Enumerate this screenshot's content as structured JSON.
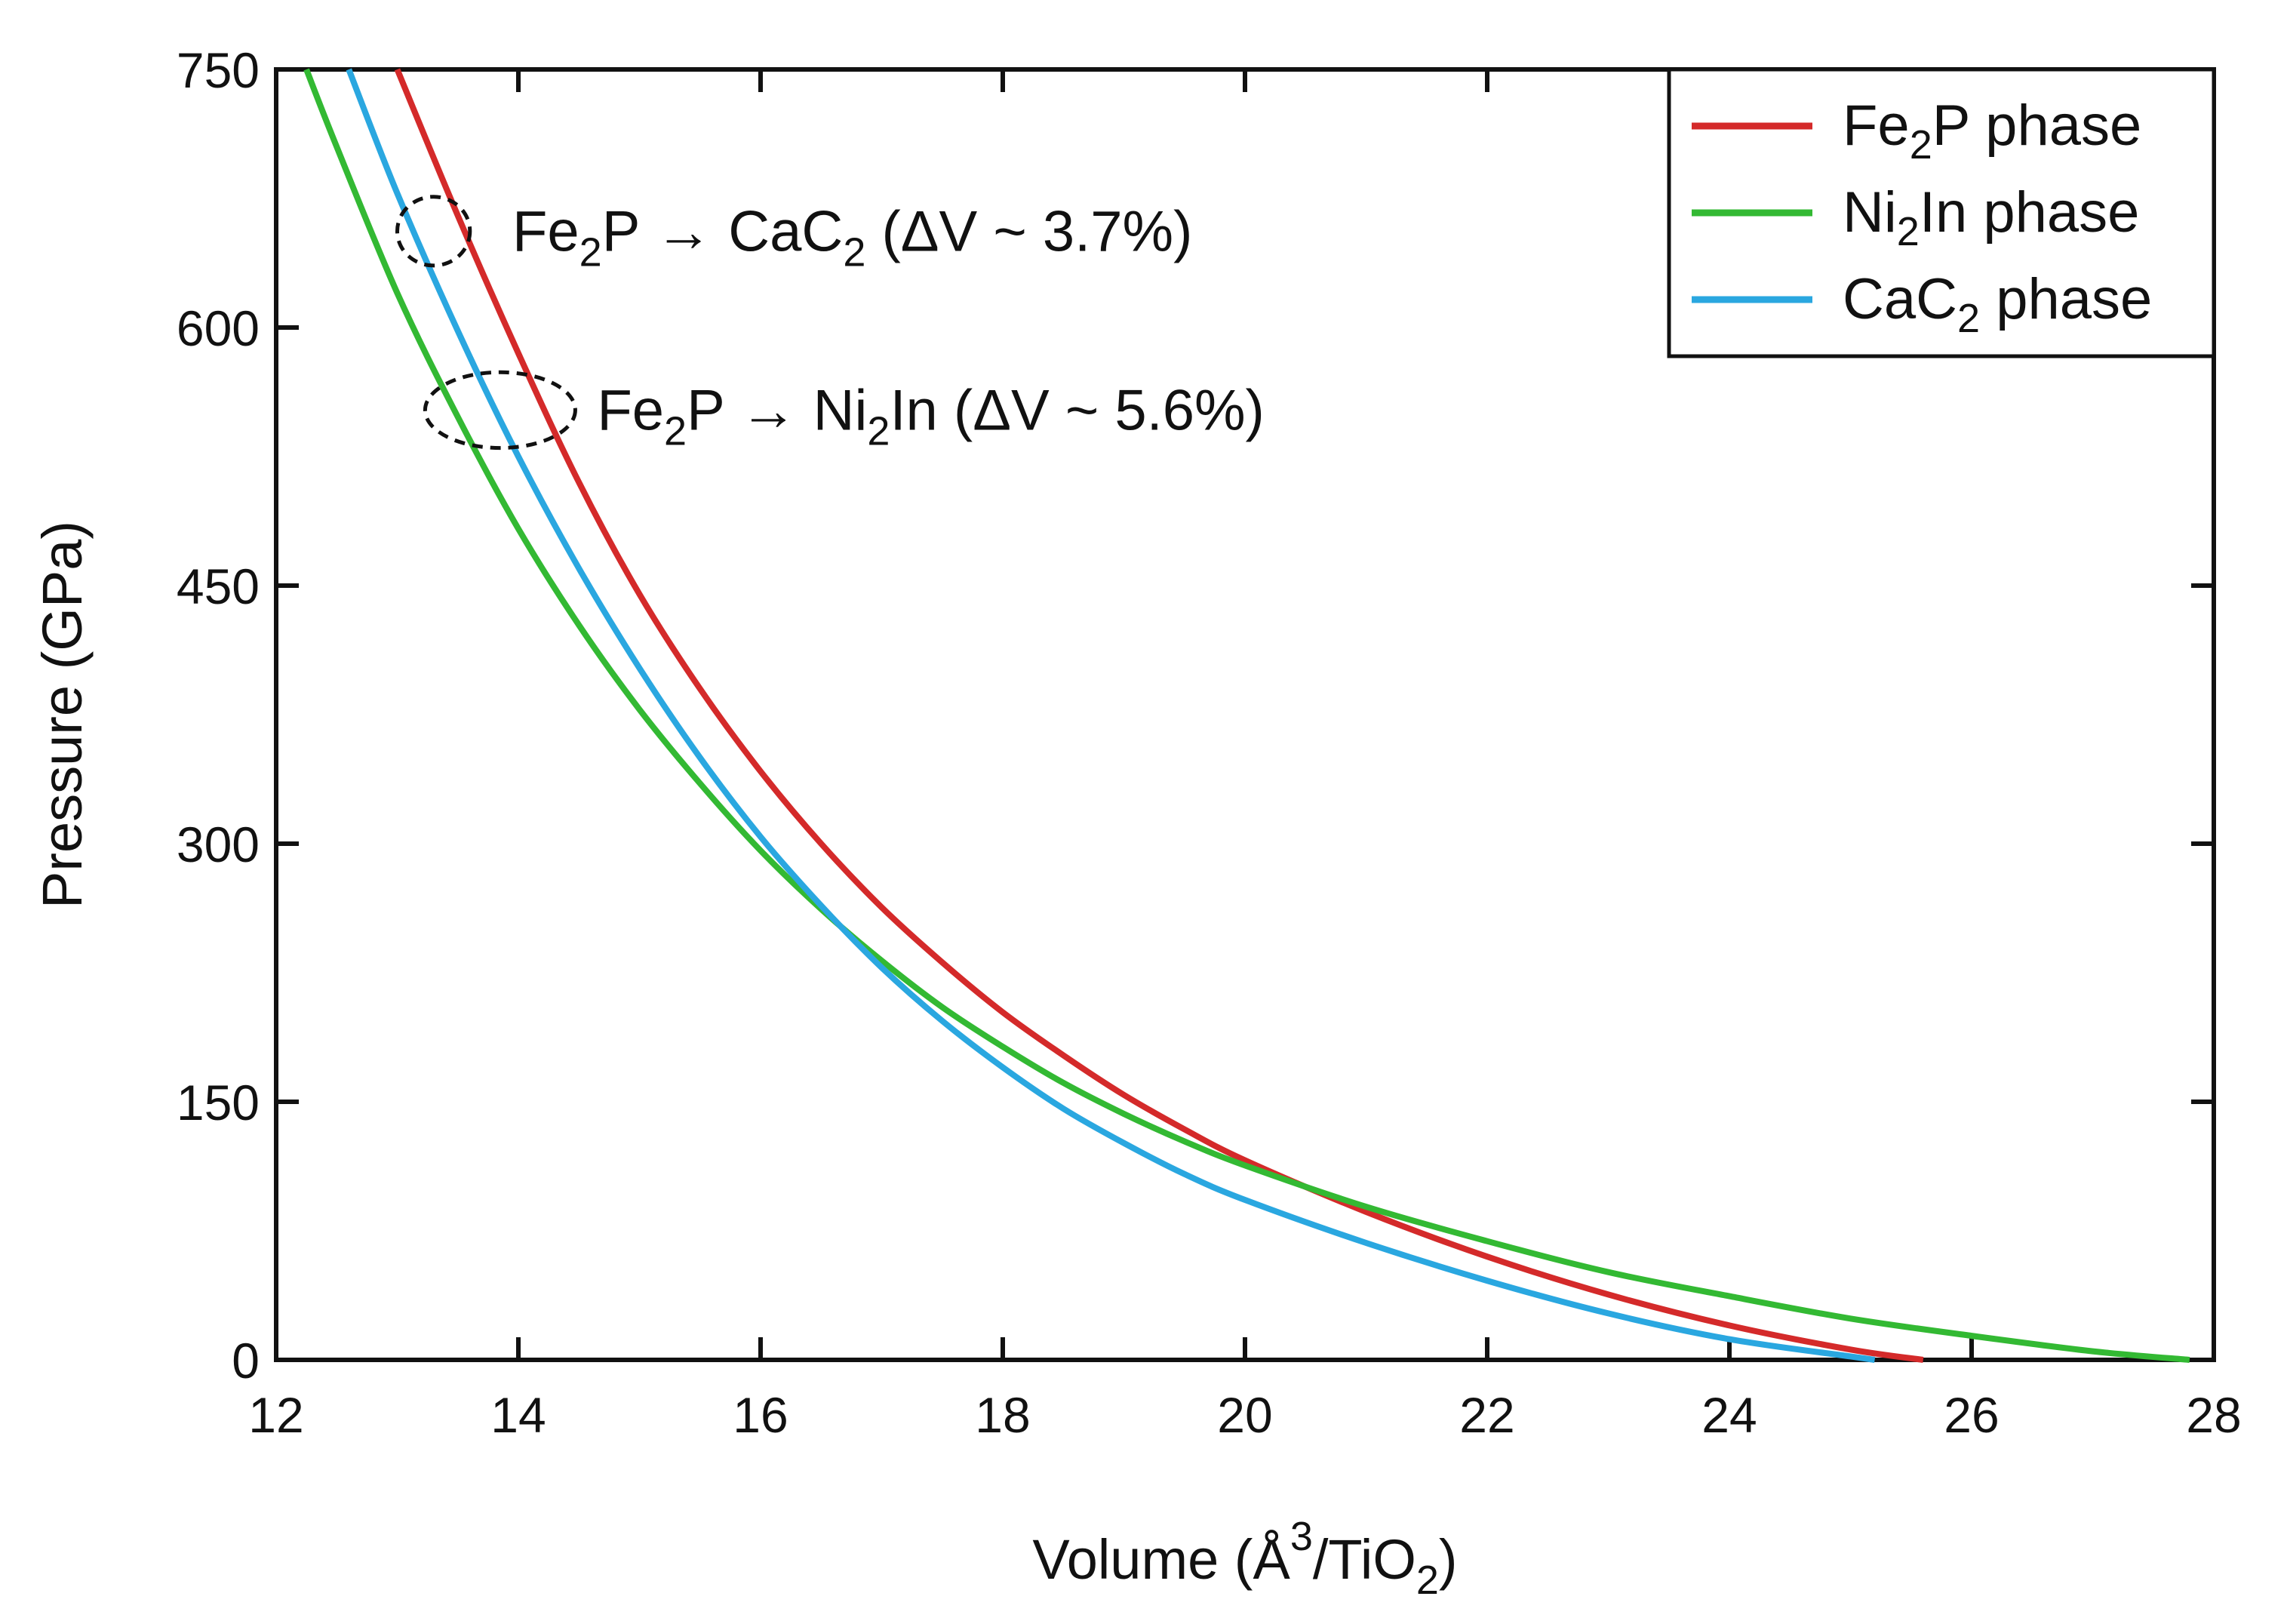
{
  "chart_data": {
    "type": "line",
    "xlabel": "Volume (Å3/TiO2)",
    "ylabel": "Pressure (GPa)",
    "xlabel_parts": {
      "pre": "Volume (Å",
      "sup": "3",
      "mid": "/TiO",
      "sub": "2",
      "post": ")"
    },
    "xlim": [
      12,
      28
    ],
    "ylim": [
      0,
      750
    ],
    "xticks": [
      12,
      14,
      16,
      18,
      20,
      22,
      24,
      26,
      28
    ],
    "yticks": [
      0,
      150,
      300,
      450,
      600,
      750
    ],
    "grid": false,
    "legend_position": "top-right",
    "series": [
      {
        "name": "Fe2P phase",
        "label_parts": {
          "a": "Fe",
          "sub": "2",
          "b": "P phase"
        },
        "color": "#d42a2a",
        "x": [
          13.0,
          13.5,
          14.0,
          14.5,
          15.0,
          15.5,
          16.0,
          16.5,
          17.0,
          17.5,
          18.0,
          18.5,
          19.0,
          19.5,
          20.0,
          21.0,
          22.0,
          23.0,
          24.0,
          25.0,
          25.6
        ],
        "y": [
          750,
          665,
          585,
          510,
          445,
          390,
          342,
          300,
          263,
          231,
          202,
          177,
          154,
          134,
          116,
          86,
          60,
          38,
          20,
          6,
          0
        ]
      },
      {
        "name": "Ni2In phase",
        "label_parts": {
          "a": "Ni",
          "sub": "2",
          "b": "In phase"
        },
        "color": "#33b933",
        "x": [
          12.25,
          12.5,
          13.0,
          13.5,
          14.0,
          14.5,
          15.0,
          15.5,
          16.0,
          16.5,
          17.0,
          17.5,
          18.0,
          18.5,
          19.0,
          19.5,
          20.0,
          21.0,
          22.0,
          23.0,
          24.0,
          25.0,
          26.0,
          27.0,
          27.8
        ],
        "y": [
          750,
          705,
          620,
          548,
          483,
          427,
          378,
          335,
          296,
          262,
          232,
          205,
          182,
          161,
          143,
          127,
          113,
          89,
          69,
          51,
          37,
          24,
          14,
          5,
          0
        ]
      },
      {
        "name": "CaC2 phase",
        "label_parts": {
          "a": "CaC",
          "sub": "2",
          "b": " phase"
        },
        "color": "#2aa7e0",
        "x": [
          12.6,
          13.0,
          13.5,
          14.0,
          14.5,
          15.0,
          15.5,
          16.0,
          16.5,
          17.0,
          17.5,
          18.0,
          18.5,
          19.0,
          19.5,
          20.0,
          21.0,
          22.0,
          23.0,
          24.0,
          25.0,
          25.2
        ],
        "y": [
          750,
          678,
          598,
          525,
          460,
          402,
          350,
          304,
          264,
          228,
          197,
          170,
          146,
          126,
          108,
          93,
          68,
          46,
          27,
          12,
          2,
          0
        ]
      }
    ],
    "annotations": [
      {
        "text": "Fe2P → CaC2 (ΔV ~ 3.7%)",
        "parts": [
          {
            "t": "Fe",
            "s": "n"
          },
          {
            "t": "2",
            "s": "sub"
          },
          {
            "t": "P → CaC",
            "s": "n"
          },
          {
            "t": "2",
            "s": "sub"
          },
          {
            "t": " (ΔV ~ 3.7%)",
            "s": "n"
          }
        ],
        "ellipse_center": [
          13.3,
          656
        ],
        "ellipse_radius": [
          0.3,
          20
        ],
        "text_at": [
          13.95,
          656
        ]
      },
      {
        "text": "Fe2P → Ni2In (ΔV ~ 5.6%)",
        "parts": [
          {
            "t": "Fe",
            "s": "n"
          },
          {
            "t": "2",
            "s": "sub"
          },
          {
            "t": "P → Ni",
            "s": "n"
          },
          {
            "t": "2",
            "s": "sub"
          },
          {
            "t": "In (ΔV ~ 5.6%)",
            "s": "n"
          }
        ],
        "ellipse_center": [
          13.85,
          552
        ],
        "ellipse_radius": [
          0.62,
          22
        ],
        "text_at": [
          14.65,
          552
        ]
      }
    ]
  }
}
